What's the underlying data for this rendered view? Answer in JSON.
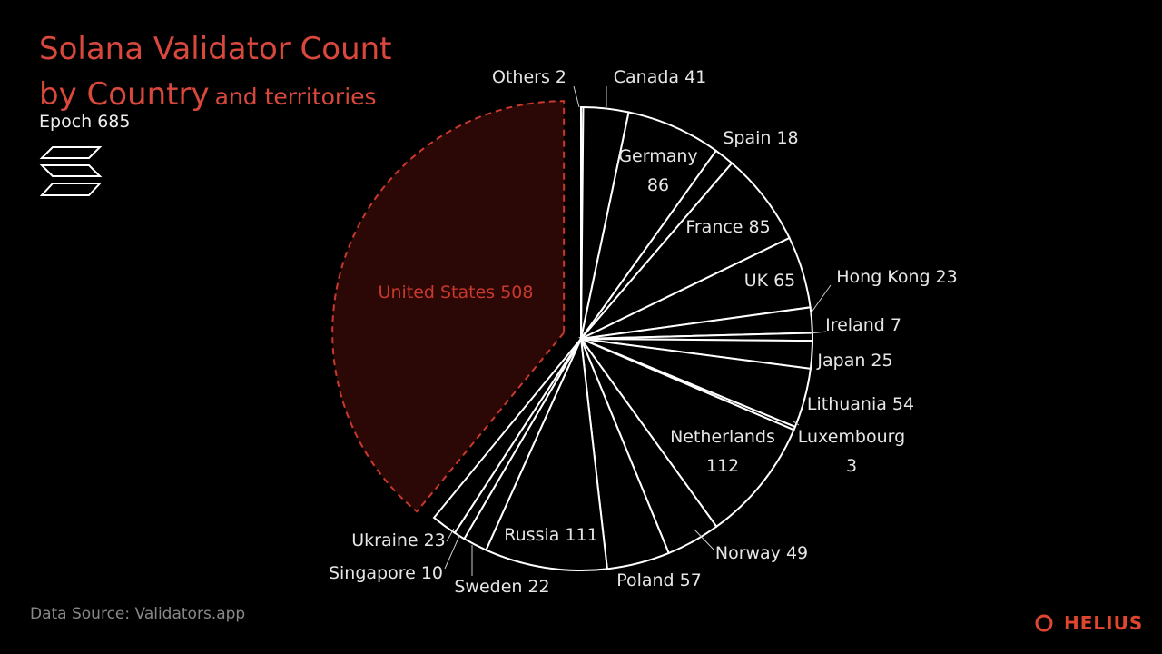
{
  "chart_data": {
    "type": "pie",
    "title": "Solana Validator Count by Country",
    "title_note": "and territories",
    "subtitle": "Epoch 685",
    "source": "Data Source: Validators.app",
    "brand": "HELIUS",
    "categories": [
      "Others",
      "Canada",
      "Germany",
      "Spain",
      "France",
      "UK",
      "Hong Kong",
      "Ireland",
      "Japan",
      "Lithuania",
      "Luxembourg",
      "Netherlands",
      "Norway",
      "Poland",
      "Russia",
      "Sweden",
      "Singapore",
      "Ukraine",
      "United States"
    ],
    "values": [
      2,
      41,
      86,
      18,
      85,
      65,
      23,
      7,
      25,
      54,
      3,
      112,
      49,
      57,
      111,
      22,
      10,
      23,
      508
    ],
    "colors": [
      "#000000",
      "#000000",
      "#000000",
      "#000000",
      "#000000",
      "#000000",
      "#000000",
      "#000000",
      "#000000",
      "#000000",
      "#000000",
      "#000000",
      "#000000",
      "#000000",
      "#000000",
      "#000000",
      "#000000",
      "#000000",
      "#2b0806"
    ],
    "edge_color": "#ffffff",
    "highlight_color": "#c9382d"
  }
}
